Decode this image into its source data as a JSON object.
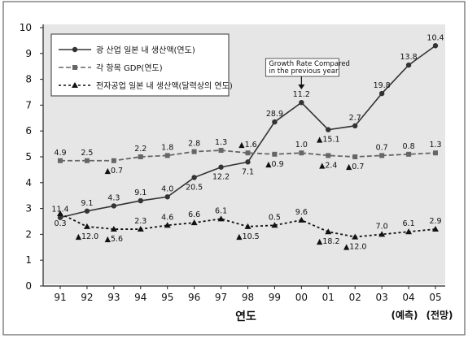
{
  "chart_data": {
    "type": "line",
    "title": "",
    "xlabel": "연도",
    "x_extra_labels": [
      "(예측)",
      "(전망)"
    ],
    "ylabel": "",
    "categories": [
      "91",
      "92",
      "93",
      "94",
      "95",
      "96",
      "97",
      "98",
      "99",
      "00",
      "01",
      "02",
      "03",
      "04",
      "05"
    ],
    "ylim": [
      0,
      10
    ],
    "yticks": [
      "0",
      "1",
      "2",
      "3",
      "4",
      "5",
      "6",
      "7",
      "8",
      "9",
      "10"
    ],
    "grid": false,
    "legend": "top-left",
    "series": [
      {
        "name": "광 산업 일본 내 생산액(연도)",
        "marker": "circle",
        "line": "solid",
        "color": "#333333",
        "values": [
          2.65,
          2.9,
          3.1,
          3.3,
          3.45,
          4.2,
          4.6,
          4.8,
          6.35,
          7.1,
          6.05,
          6.2,
          7.45,
          8.55,
          9.3
        ],
        "labels": [
          {
            "text": "11.4",
            "dir": "up"
          },
          {
            "text": "9.1",
            "dir": "up"
          },
          {
            "text": "4.3",
            "dir": "up"
          },
          {
            "text": "9.1",
            "dir": "up"
          },
          {
            "text": "4.0",
            "dir": "up"
          },
          {
            "text": "20.5",
            "dir": "down"
          },
          {
            "text": "12.2",
            "dir": "down"
          },
          {
            "text": "7.1",
            "dir": "down"
          },
          {
            "text": "28.9",
            "dir": "up"
          },
          {
            "text": "11.2",
            "dir": "up"
          },
          {
            "text": "▲15.1",
            "dir": "down"
          },
          {
            "text": "2.7",
            "dir": "up"
          },
          {
            "text": "19.8",
            "dir": "up"
          },
          {
            "text": "13.8",
            "dir": "up"
          },
          {
            "text": "10.4",
            "dir": "up"
          }
        ]
      },
      {
        "name": "각 항목 GDP(연도)",
        "marker": "square",
        "line": "dashed",
        "color": "#666666",
        "values": [
          4.85,
          4.85,
          4.85,
          5.0,
          5.05,
          5.2,
          5.25,
          5.15,
          5.1,
          5.15,
          5.05,
          5.0,
          5.05,
          5.1,
          5.15
        ],
        "labels": [
          {
            "text": "4.9",
            "dir": "up"
          },
          {
            "text": "2.5",
            "dir": "up"
          },
          {
            "text": "▲0.7",
            "dir": "down"
          },
          {
            "text": "2.2",
            "dir": "up"
          },
          {
            "text": "1.8",
            "dir": "up"
          },
          {
            "text": "2.8",
            "dir": "up"
          },
          {
            "text": "1.3",
            "dir": "up"
          },
          {
            "text": "▲1.6",
            "dir": "up"
          },
          {
            "text": "▲0.9",
            "dir": "down"
          },
          {
            "text": "1.0",
            "dir": "up"
          },
          {
            "text": "▲2.4",
            "dir": "down"
          },
          {
            "text": "▲0.7",
            "dir": "down"
          },
          {
            "text": "0.7",
            "dir": "up"
          },
          {
            "text": "0.8",
            "dir": "up"
          },
          {
            "text": "1.3",
            "dir": "up"
          }
        ]
      },
      {
        "name": "전자공업 일본 내 생산액(달력상의 연도)",
        "marker": "triangle",
        "line": "dotted",
        "color": "#111111",
        "values": [
          2.8,
          2.3,
          2.2,
          2.2,
          2.35,
          2.45,
          2.6,
          2.3,
          2.35,
          2.55,
          2.1,
          1.9,
          2.0,
          2.1,
          2.2
        ],
        "labels": [
          {
            "text": "0.3",
            "dir": "down"
          },
          {
            "text": "▲12.0",
            "dir": "down"
          },
          {
            "text": "▲5.6",
            "dir": "down"
          },
          {
            "text": "2.3",
            "dir": "up"
          },
          {
            "text": "4.6",
            "dir": "up"
          },
          {
            "text": "6.6",
            "dir": "up"
          },
          {
            "text": "6.1",
            "dir": "up"
          },
          {
            "text": "▲10.5",
            "dir": "down"
          },
          {
            "text": "0.5",
            "dir": "up"
          },
          {
            "text": "9.6",
            "dir": "up"
          },
          {
            "text": "▲18.2",
            "dir": "down"
          },
          {
            "text": "▲12.0",
            "dir": "down"
          },
          {
            "text": "7.0",
            "dir": "up"
          },
          {
            "text": "6.1",
            "dir": "up"
          },
          {
            "text": "2.9",
            "dir": "up"
          }
        ]
      }
    ],
    "annotation": {
      "lines": [
        "Growth Rate Compared",
        "in the previous year"
      ],
      "target_category": "00"
    }
  }
}
